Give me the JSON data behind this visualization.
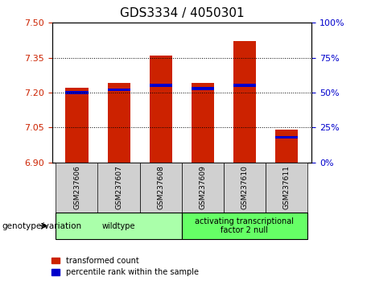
{
  "title": "GDS3334 / 4050301",
  "samples": [
    "GSM237606",
    "GSM237607",
    "GSM237608",
    "GSM237609",
    "GSM237610",
    "GSM237611"
  ],
  "transformed_counts": [
    7.22,
    7.24,
    7.36,
    7.24,
    7.42,
    7.04
  ],
  "percentile_ranks": [
    50,
    52,
    55,
    53,
    55,
    18
  ],
  "ylim_left": [
    6.9,
    7.5
  ],
  "ylim_right": [
    0,
    100
  ],
  "yticks_left": [
    6.9,
    7.05,
    7.2,
    7.35,
    7.5
  ],
  "yticks_right": [
    0,
    25,
    50,
    75,
    100
  ],
  "bar_color_red": "#cc2200",
  "bar_color_blue": "#0000cc",
  "bar_width": 0.55,
  "genotype_groups": [
    {
      "label": "wildtype",
      "start": 0,
      "end": 2,
      "color": "#aaffaa"
    },
    {
      "label": "activating transcriptional\nfactor 2 null",
      "start": 3,
      "end": 5,
      "color": "#66ff66"
    }
  ],
  "genotype_label": "genotype/variation",
  "legend_items": [
    {
      "label": "transformed count",
      "color": "#cc2200"
    },
    {
      "label": "percentile rank within the sample",
      "color": "#0000cc"
    }
  ],
  "background_color": "#ffffff",
  "tick_label_color_left": "#cc2200",
  "tick_label_color_right": "#0000cc",
  "title_fontsize": 11,
  "base_value": 6.9,
  "sample_box_color": "#d0d0d0"
}
